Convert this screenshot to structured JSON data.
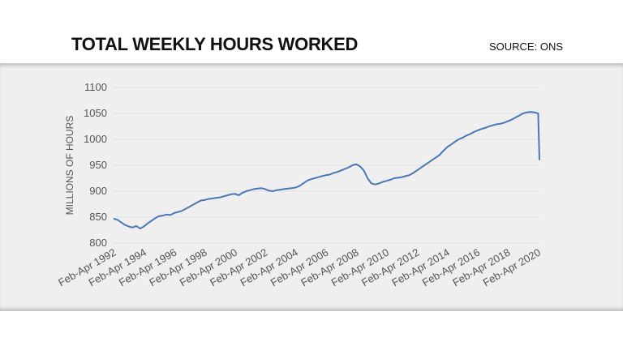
{
  "header": {
    "title": "TOTAL WEEKLY HOURS WORKED",
    "source": "SOURCE: ONS"
  },
  "colors": {
    "line": "#4a78b5",
    "panel": "#efefef",
    "grid": "#e2e2e2",
    "text": "#555555"
  },
  "chart_data": {
    "type": "line",
    "title": "TOTAL WEEKLY HOURS WORKED",
    "xlabel": "",
    "ylabel": "MILLIONS OF HOURS",
    "ylim": [
      800,
      1100
    ],
    "yticks": [
      800,
      850,
      900,
      950,
      1000,
      1050,
      1100
    ],
    "xticks": [
      "Feb-Apr 1992",
      "Feb-Apr 1994",
      "Feb-Apr 1996",
      "Feb-Apr 1998",
      "Feb-Apr 2000",
      "Feb-Apr 2002",
      "Feb-Apr 2004",
      "Feb-Apr 2006",
      "Feb-Apr 2008",
      "Feb-Apr 2010",
      "Feb-Apr 2012",
      "Feb-Apr 2014",
      "Feb-Apr 2016",
      "Feb-Apr 2018",
      "Feb-Apr 2020"
    ],
    "grid": true,
    "legend": "none",
    "series": [
      {
        "x": [
          1992.0,
          1992.25,
          1992.5,
          1992.75,
          1993.0,
          1993.25,
          1993.5,
          1993.75,
          1994.0,
          1994.25,
          1994.5,
          1994.75,
          1995.0,
          1995.25,
          1995.5,
          1995.75,
          1996.0,
          1996.25,
          1996.5,
          1996.75,
          1997.0,
          1997.25,
          1997.5,
          1997.75,
          1998.0,
          1998.25,
          1998.5,
          1998.75,
          1999.0,
          1999.25,
          1999.5,
          1999.75,
          2000.0,
          2000.25,
          2000.5,
          2000.75,
          2001.0,
          2001.25,
          2001.5,
          2001.75,
          2002.0,
          2002.25,
          2002.5,
          2002.75,
          2003.0,
          2003.25,
          2003.5,
          2003.75,
          2004.0,
          2004.25,
          2004.5,
          2004.75,
          2005.0,
          2005.25,
          2005.5,
          2005.75,
          2006.0,
          2006.25,
          2006.5,
          2006.75,
          2007.0,
          2007.25,
          2007.5,
          2007.75,
          2008.0,
          2008.25,
          2008.5,
          2008.75,
          2009.0,
          2009.25,
          2009.5,
          2009.75,
          2010.0,
          2010.25,
          2010.5,
          2010.75,
          2011.0,
          2011.25,
          2011.5,
          2011.75,
          2012.0,
          2012.25,
          2012.5,
          2012.75,
          2013.0,
          2013.25,
          2013.5,
          2013.75,
          2014.0,
          2014.25,
          2014.5,
          2014.75,
          2015.0,
          2015.25,
          2015.5,
          2015.75,
          2016.0,
          2016.25,
          2016.5,
          2016.75,
          2017.0,
          2017.25,
          2017.5,
          2017.75,
          2018.0,
          2018.25,
          2018.5,
          2018.75,
          2019.0,
          2019.25,
          2019.5,
          2019.75,
          2020.0,
          2020.083
        ],
        "values": [
          847,
          845,
          840,
          835,
          832,
          830,
          833,
          828,
          832,
          838,
          843,
          848,
          852,
          853,
          855,
          854,
          858,
          860,
          862,
          866,
          870,
          874,
          878,
          882,
          883,
          885,
          886,
          887,
          888,
          890,
          892,
          894,
          895,
          892,
          897,
          900,
          902,
          904,
          905,
          906,
          904,
          901,
          900,
          902,
          903,
          904,
          905,
          906,
          907,
          910,
          915,
          920,
          923,
          925,
          927,
          929,
          931,
          932,
          935,
          937,
          940,
          943,
          946,
          950,
          952,
          948,
          940,
          925,
          915,
          913,
          915,
          918,
          920,
          922,
          925,
          926,
          927,
          929,
          931,
          935,
          940,
          945,
          950,
          955,
          960,
          965,
          970,
          978,
          985,
          990,
          995,
          1000,
          1003,
          1007,
          1010,
          1014,
          1017,
          1020,
          1022,
          1025,
          1027,
          1029,
          1030,
          1032,
          1035,
          1038,
          1042,
          1046,
          1050,
          1052,
          1053,
          1052,
          1050,
          960
        ]
      }
    ]
  }
}
